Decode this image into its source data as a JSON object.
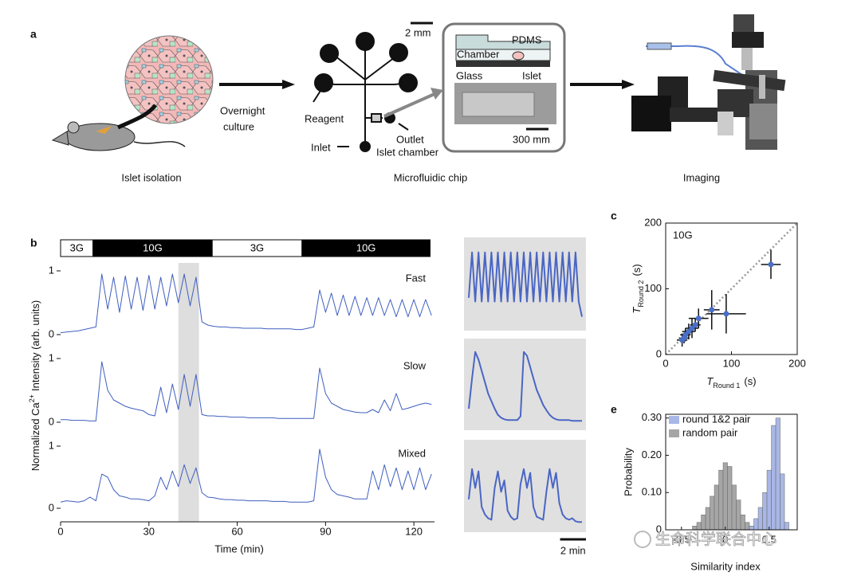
{
  "panel_a": {
    "label": "a",
    "islet_isolation": "Islet isolation",
    "culture": [
      "Overnight",
      "culture"
    ],
    "chip_title": "Microfluidic chip",
    "chip_scale": "2 mm",
    "reagent": "Reagent",
    "inlet": "Inlet",
    "outlet": "Outlet",
    "islet_chamber": "Islet chamber",
    "inset": {
      "pdms": "PDMS",
      "chamber": "Chamber",
      "glass": "Glass",
      "islet": "Islet",
      "scale": "300 mm"
    },
    "imaging": "Imaging"
  },
  "watermark": "生命科学联合中心",
  "chart_data": [
    {
      "type": "line",
      "panel_label": "b",
      "conditions": [
        {
          "label": "3G",
          "start": 0,
          "end": 11,
          "fill": "#ffffff"
        },
        {
          "label": "10G",
          "start": 11,
          "end": 51.5,
          "fill": "#000000"
        },
        {
          "label": "3G",
          "start": 51.5,
          "end": 82,
          "fill": "#ffffff"
        },
        {
          "label": "10G",
          "start": 82,
          "end": 125.5,
          "fill": "#000000"
        }
      ],
      "highlight": [
        40,
        47
      ],
      "x": [
        0,
        2,
        4,
        6,
        8,
        10,
        12,
        14,
        16,
        18,
        20,
        22,
        24,
        26,
        28,
        30,
        32,
        34,
        36,
        38,
        40,
        42,
        44,
        46,
        48,
        50,
        52,
        54,
        56,
        58,
        60,
        62,
        64,
        66,
        68,
        70,
        72,
        74,
        76,
        78,
        80,
        82,
        84,
        86,
        88,
        90,
        92,
        94,
        96,
        98,
        100,
        102,
        104,
        106,
        108,
        110,
        112,
        114,
        116,
        118,
        120,
        122,
        124,
        126
      ],
      "series": [
        {
          "name": "Fast",
          "color": "#3f5fbf",
          "values": [
            0.03,
            0.04,
            0.05,
            0.06,
            0.08,
            0.1,
            0.12,
            0.95,
            0.4,
            0.9,
            0.35,
            0.92,
            0.4,
            0.9,
            0.38,
            0.93,
            0.4,
            0.9,
            0.45,
            0.95,
            0.5,
            0.95,
            0.45,
            0.9,
            0.2,
            0.15,
            0.13,
            0.12,
            0.12,
            0.11,
            0.11,
            0.1,
            0.1,
            0.1,
            0.1,
            0.09,
            0.09,
            0.09,
            0.09,
            0.09,
            0.08,
            0.08,
            0.1,
            0.12,
            0.7,
            0.35,
            0.65,
            0.3,
            0.62,
            0.3,
            0.6,
            0.3,
            0.58,
            0.3,
            0.58,
            0.3,
            0.55,
            0.28,
            0.55,
            0.28,
            0.55,
            0.28,
            0.55,
            0.3
          ]
        },
        {
          "name": "Slow",
          "color": "#3f5fbf",
          "values": [
            0.04,
            0.04,
            0.03,
            0.03,
            0.03,
            0.02,
            0.02,
            0.95,
            0.5,
            0.35,
            0.3,
            0.25,
            0.22,
            0.2,
            0.18,
            0.12,
            0.1,
            0.55,
            0.15,
            0.6,
            0.2,
            0.75,
            0.25,
            0.75,
            0.12,
            0.1,
            0.1,
            0.09,
            0.09,
            0.08,
            0.08,
            0.08,
            0.07,
            0.07,
            0.07,
            0.07,
            0.07,
            0.06,
            0.06,
            0.06,
            0.06,
            0.06,
            0.06,
            0.06,
            0.85,
            0.45,
            0.3,
            0.25,
            0.2,
            0.18,
            0.16,
            0.15,
            0.15,
            0.2,
            0.15,
            0.35,
            0.18,
            0.45,
            0.2,
            0.22,
            0.25,
            0.28,
            0.3,
            0.28
          ]
        },
        {
          "name": "Mixed",
          "color": "#3f5fbf",
          "values": [
            0.1,
            0.12,
            0.11,
            0.1,
            0.12,
            0.18,
            0.12,
            0.55,
            0.5,
            0.3,
            0.2,
            0.18,
            0.15,
            0.15,
            0.14,
            0.12,
            0.2,
            0.5,
            0.3,
            0.6,
            0.35,
            0.7,
            0.4,
            0.65,
            0.25,
            0.18,
            0.17,
            0.15,
            0.14,
            0.14,
            0.13,
            0.13,
            0.12,
            0.12,
            0.12,
            0.12,
            0.11,
            0.11,
            0.11,
            0.1,
            0.1,
            0.1,
            0.1,
            0.12,
            0.95,
            0.5,
            0.3,
            0.22,
            0.2,
            0.18,
            0.15,
            0.15,
            0.15,
            0.6,
            0.3,
            0.7,
            0.35,
            0.65,
            0.3,
            0.6,
            0.3,
            0.65,
            0.3,
            0.55
          ]
        }
      ],
      "xlim": [
        0,
        127
      ],
      "xticks": [
        0,
        30,
        60,
        90,
        120
      ],
      "ylim": [
        0,
        1
      ],
      "yticks": [
        0,
        1
      ],
      "xlabel": "Time (min)",
      "ylabel": {
        "before": "Normalized Ca",
        "superscript": "2+",
        "after": "Intensity (arb. units)"
      }
    },
    {
      "type": "line",
      "scale_bar_length": 2,
      "scale_bar_label": "2 min",
      "xlim": [
        0,
        8.75
      ],
      "ylim": [
        0,
        1
      ],
      "x": [
        0,
        0.25,
        0.5,
        0.75,
        1,
        1.25,
        1.5,
        1.75,
        2,
        2.25,
        2.5,
        2.75,
        3,
        3.25,
        3.5,
        3.75,
        4,
        4.25,
        4.5,
        4.75,
        5,
        5.25,
        5.5,
        5.75,
        6,
        6.25,
        6.5,
        6.75,
        7,
        7.25,
        7.5,
        7.75,
        8,
        8.25,
        8.5,
        8.75
      ],
      "series": [
        {
          "color": "#4a66c4",
          "values": [
            0.35,
            0.95,
            0.3,
            0.95,
            0.3,
            0.95,
            0.3,
            0.95,
            0.3,
            0.95,
            0.3,
            0.95,
            0.3,
            0.95,
            0.3,
            0.95,
            0.3,
            0.95,
            0.3,
            0.95,
            0.3,
            0.95,
            0.3,
            0.95,
            0.3,
            0.95,
            0.3,
            0.95,
            0.3,
            0.95,
            0.3,
            0.95,
            0.3,
            0.95,
            0.3,
            0.1
          ]
        },
        {
          "color": "#4a66c4",
          "values": [
            0.2,
            0.6,
            0.95,
            0.85,
            0.7,
            0.55,
            0.4,
            0.3,
            0.2,
            0.12,
            0.08,
            0.06,
            0.05,
            0.05,
            0.05,
            0.05,
            0.1,
            0.95,
            0.9,
            0.75,
            0.6,
            0.45,
            0.35,
            0.25,
            0.18,
            0.12,
            0.08,
            0.06,
            0.05,
            0.05,
            0.05,
            0.05,
            0.04,
            0.04,
            0.04,
            0.04
          ]
        },
        {
          "color": "#4a66c4",
          "values": [
            0.35,
            0.75,
            0.5,
            0.72,
            0.25,
            0.15,
            0.1,
            0.08,
            0.5,
            0.72,
            0.45,
            0.6,
            0.2,
            0.12,
            0.08,
            0.1,
            0.55,
            0.75,
            0.5,
            0.7,
            0.25,
            0.12,
            0.1,
            0.08,
            0.45,
            0.75,
            0.5,
            0.7,
            0.3,
            0.15,
            0.1,
            0.08,
            0.1,
            0.06,
            0.05,
            0.05
          ]
        }
      ]
    },
    {
      "type": "scatter",
      "panel_label": "c",
      "annotation": "10G",
      "xlim": [
        0,
        200
      ],
      "ylim": [
        0,
        200
      ],
      "xticks": [
        0,
        100,
        200
      ],
      "yticks": [
        0,
        100,
        200
      ],
      "xlabel": {
        "symbol": "T",
        "subscript": "Round 1",
        "unit": "(s)"
      },
      "ylabel": {
        "symbol": "T",
        "subscript": "Round 2",
        "unit": "(s)"
      },
      "series": [
        {
          "color": "#4a6fc7",
          "x": [
            160,
            92,
            70,
            50,
            40,
            35,
            30,
            25,
            28,
            45
          ],
          "values": [
            137,
            62,
            68,
            55,
            40,
            35,
            30,
            22,
            25,
            45
          ],
          "xerr": [
            15,
            30,
            12,
            15,
            10,
            10,
            8,
            8,
            8,
            8
          ],
          "yerr": [
            22,
            30,
            30,
            15,
            15,
            12,
            10,
            10,
            8,
            10
          ]
        }
      ]
    },
    {
      "type": "bar",
      "panel_label": "e",
      "xlim": [
        -0.68,
        0.82
      ],
      "ylim": [
        0,
        0.31
      ],
      "xticks": [
        -0.5,
        0,
        0.5
      ],
      "yticks": [
        0,
        {
          "value": 0.1,
          "label": "0.10"
        },
        {
          "value": 0.2,
          "label": "0.20"
        },
        {
          "value": 0.3,
          "label": "0.30"
        }
      ],
      "xlabel": "Similarity index",
      "ylabel": "Probability",
      "x": [
        -0.35,
        -0.3,
        -0.25,
        -0.2,
        -0.15,
        -0.1,
        -0.05,
        0,
        0.05,
        0.1,
        0.15,
        0.2,
        0.25,
        0.3,
        0.35,
        0.4,
        0.45,
        0.5,
        0.55,
        0.6,
        0.65,
        0.7
      ],
      "series": [
        {
          "name": "round 1&2 pair",
          "color": "#a9b7e6",
          "values": [
            null,
            null,
            null,
            null,
            null,
            null,
            null,
            null,
            null,
            null,
            null,
            null,
            null,
            0.01,
            0.03,
            0.06,
            0.1,
            0.16,
            0.28,
            0.3,
            0.15,
            0.02
          ]
        },
        {
          "name": "random pair",
          "color": "#a6a6a6",
          "values": [
            0.01,
            0.02,
            0.04,
            0.06,
            0.09,
            0.12,
            0.16,
            0.18,
            0.17,
            0.12,
            0.08,
            0.04,
            0.02,
            0.01,
            null,
            null,
            null,
            null,
            null,
            null,
            null,
            null
          ]
        }
      ]
    }
  ]
}
